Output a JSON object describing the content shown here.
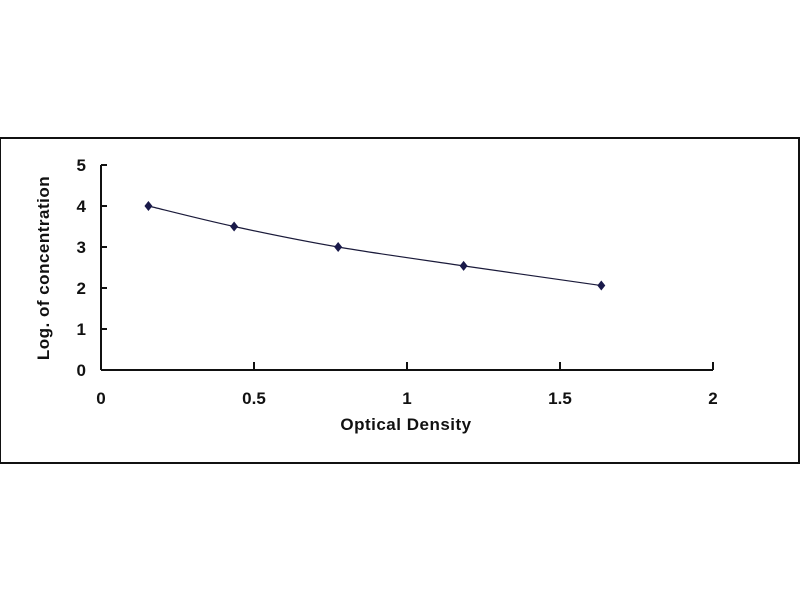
{
  "chart_data": {
    "type": "scatter",
    "title": "",
    "xlabel": "Optical Density",
    "ylabel": "Log. of concentration",
    "xlim": [
      0,
      2
    ],
    "ylim": [
      0,
      5
    ],
    "xticks": [
      "0",
      "0.5",
      "1",
      "1.5",
      "2"
    ],
    "yticks": [
      "0",
      "1",
      "2",
      "3",
      "4",
      "5"
    ],
    "grid": false,
    "legend": "none",
    "marker": "diamond",
    "line": "smooth",
    "color": "#1a1a4a",
    "x": [
      0.155,
      0.435,
      0.775,
      1.185,
      1.635
    ],
    "y": [
      4.0,
      3.5,
      3.0,
      2.54,
      2.06
    ]
  }
}
